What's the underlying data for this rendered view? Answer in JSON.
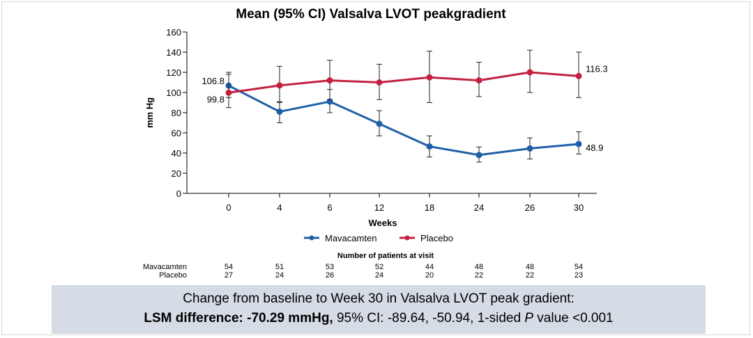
{
  "chart_data": {
    "type": "line",
    "title": "Mean (95% CI) Valsalva LVOT peakgradient",
    "xlabel": "Weeks",
    "ylabel": "mm Hg",
    "x": [
      0,
      4,
      6,
      12,
      18,
      24,
      26,
      30
    ],
    "categories": [
      "0",
      "4",
      "6",
      "12",
      "18",
      "24",
      "26",
      "30"
    ],
    "ylim": [
      0,
      160
    ],
    "yticks": [
      "0",
      "20",
      "40",
      "60",
      "80",
      "100",
      "120",
      "140",
      "160"
    ],
    "grid": false,
    "legend_position": "bottom",
    "series": [
      {
        "name": "Mavacamten",
        "color": "#1f5fa8",
        "values": [
          106.8,
          81,
          91,
          69,
          46.5,
          38,
          44.5,
          48.9
        ],
        "ci_low": [
          95,
          70,
          80,
          57,
          36,
          31,
          34,
          39
        ],
        "ci_high": [
          118,
          91,
          103,
          82,
          57,
          46,
          55,
          61
        ]
      },
      {
        "name": "Placebo",
        "color": "#c3203f",
        "values": [
          99.8,
          107,
          112,
          110,
          115,
          112,
          120,
          116.3
        ],
        "ci_low": [
          85,
          90,
          93,
          93,
          90,
          96,
          100,
          95
        ],
        "ci_high": [
          120,
          126,
          132,
          128,
          141,
          130,
          142,
          140
        ]
      }
    ],
    "annotations": [
      {
        "text": "106.8",
        "series": "Mavacamten",
        "x": 0,
        "side": "left"
      },
      {
        "text": "99.8",
        "series": "Placebo",
        "x": 0,
        "side": "left"
      },
      {
        "text": "116.3",
        "series": "Placebo",
        "x": 30,
        "side": "right"
      },
      {
        "text": "48.9",
        "series": "Mavacamten",
        "x": 30,
        "side": "right"
      }
    ]
  },
  "patients_table": {
    "title": "Number of patients at visit",
    "rows": [
      {
        "label": "Mavacamten",
        "values": [
          "54",
          "51",
          "53",
          "52",
          "44",
          "48",
          "48",
          "54"
        ]
      },
      {
        "label": "Placebo",
        "values": [
          "27",
          "24",
          "26",
          "24",
          "20",
          "22",
          "22",
          "23"
        ]
      }
    ]
  },
  "summary": {
    "line1": "Change from baseline to Week 30 in Valsalva LVOT peak gradient:",
    "lsm_label": "LSM difference: -70.29 mmHg,",
    "ci_text": " 95% CI: -89.64, -50.94, 1-sided ",
    "p_italic": "P",
    "p_text": " value <0.001"
  }
}
